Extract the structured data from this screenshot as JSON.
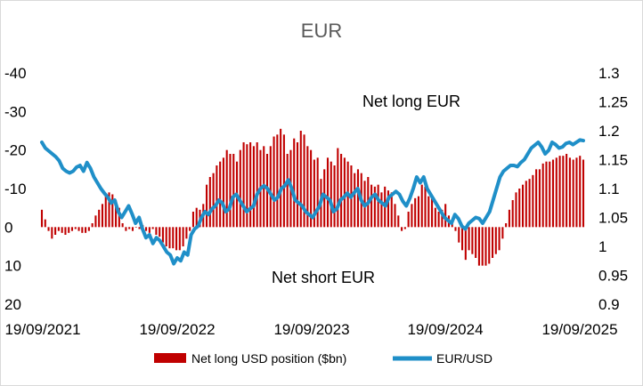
{
  "chart_data": {
    "type": "bar+line",
    "title": "EUR",
    "colors": {
      "bars": "#c00000",
      "line": "#1f8fc8"
    },
    "left_axis": {
      "ticks": [
        -40,
        -30,
        -20,
        -10,
        0,
        10,
        20
      ],
      "ylim": [
        -40,
        20
      ],
      "inverted": true
    },
    "right_axis": {
      "ticks": [
        "1.3",
        "1.25",
        "1.2",
        "1.15",
        "1.1",
        "1.05",
        "1",
        "0.95",
        "0.9"
      ],
      "ylim": [
        0.9,
        1.3
      ]
    },
    "x_tick_labels": [
      "19/09/2021",
      "19/09/2022",
      "19/09/2023",
      "19/09/2024",
      "19/09/2025"
    ],
    "x_range": [
      "2021-09-19",
      "2025-09-19"
    ],
    "annotations": {
      "net_long": "Net long EUR",
      "net_short": "Net short EUR"
    },
    "legend": {
      "bars_label": "Net long USD position ($bn)",
      "line_label": "EUR/USD",
      "position": "bottom"
    },
    "series": [
      {
        "name": "Net long USD position ($bn)",
        "kind": "bar",
        "axis": "left",
        "values": [
          -4.5,
          -2,
          1,
          3,
          2,
          1,
          1.5,
          2,
          1.5,
          1,
          0.5,
          1,
          1.5,
          1.5,
          1,
          -1,
          -3,
          -4.5,
          -6,
          -8,
          -9,
          -8.5,
          -7,
          -5,
          -1,
          1,
          0.5,
          1,
          0,
          0.5,
          -0.5,
          1,
          1.5,
          0.5,
          2,
          2.5,
          4,
          5,
          5.5,
          5.5,
          6,
          6,
          5,
          3,
          1,
          -4,
          -5,
          -4.5,
          -6,
          -11,
          -13,
          -14,
          -16,
          -17,
          -18,
          -20,
          -19,
          -19,
          -17,
          -20,
          -22,
          -21.5,
          -22,
          -21,
          -22,
          -20,
          -21,
          -19,
          -21,
          -23.5,
          -24,
          -25.5,
          -24,
          -19,
          -20,
          -23,
          -22,
          -25,
          -24,
          -21,
          -20,
          -17.5,
          -18,
          -12.5,
          -15,
          -18,
          -17,
          -16,
          -20.5,
          -19,
          -18,
          -17,
          -16,
          -14,
          -15,
          -14,
          -12,
          -13,
          -11,
          -10.5,
          -11,
          -9,
          -10.5,
          -9.5,
          -9,
          -6,
          -3,
          1,
          0.5,
          -4,
          -6,
          -7.5,
          -8,
          -11,
          -10.5,
          -8,
          -7.5,
          -5,
          -4,
          -4.5,
          -6,
          -3,
          -1,
          1,
          4,
          6,
          8.5,
          6,
          7,
          8,
          10,
          10,
          10,
          9.5,
          8,
          7,
          6,
          3,
          -1,
          -4.5,
          -7,
          -9,
          -10,
          -11,
          -12,
          -12.5,
          -13.5,
          -15,
          -15,
          -16.5,
          -17,
          -17,
          -17.5,
          -18,
          -18.5,
          -18.5,
          -19,
          -18,
          -17.5,
          -18,
          -18.5,
          -17.5
        ]
      },
      {
        "name": "EUR/USD",
        "kind": "line",
        "axis": "right",
        "values": [
          1.18,
          1.17,
          1.165,
          1.16,
          1.155,
          1.148,
          1.135,
          1.13,
          1.127,
          1.13,
          1.137,
          1.14,
          1.13,
          1.145,
          1.135,
          1.12,
          1.11,
          1.1,
          1.092,
          1.085,
          1.075,
          1.08,
          1.06,
          1.05,
          1.06,
          1.07,
          1.056,
          1.04,
          1.05,
          1.03,
          1.015,
          1.02,
          1.005,
          1.015,
          1.01,
          1.0,
          0.99,
          0.985,
          0.97,
          0.98,
          0.975,
          0.99,
          0.985,
          1.02,
          1.03,
          1.035,
          1.05,
          1.06,
          1.055,
          1.065,
          1.07,
          1.08,
          1.075,
          1.06,
          1.065,
          1.085,
          1.09,
          1.08,
          1.07,
          1.06,
          1.065,
          1.07,
          1.09,
          1.1,
          1.105,
          1.1,
          1.09,
          1.08,
          1.085,
          1.1,
          1.105,
          1.115,
          1.1,
          1.08,
          1.075,
          1.07,
          1.06,
          1.055,
          1.05,
          1.06,
          1.07,
          1.09,
          1.085,
          1.08,
          1.06,
          1.065,
          1.08,
          1.085,
          1.092,
          1.085,
          1.093,
          1.1,
          1.08,
          1.07,
          1.075,
          1.085,
          1.09,
          1.08,
          1.075,
          1.07,
          1.085,
          1.09,
          1.095,
          1.09,
          1.078,
          1.07,
          1.083,
          1.1,
          1.12,
          1.11,
          1.12,
          1.1,
          1.09,
          1.08,
          1.07,
          1.06,
          1.05,
          1.045,
          1.04,
          1.055,
          1.048,
          1.035,
          1.03,
          1.04,
          1.045,
          1.05,
          1.048,
          1.04,
          1.05,
          1.06,
          1.08,
          1.1,
          1.12,
          1.13,
          1.135,
          1.14,
          1.14,
          1.138,
          1.145,
          1.15,
          1.16,
          1.17,
          1.175,
          1.18,
          1.172,
          1.16,
          1.166,
          1.18,
          1.176,
          1.17,
          1.172,
          1.178,
          1.18,
          1.176,
          1.18,
          1.184,
          1.183
        ]
      }
    ]
  }
}
